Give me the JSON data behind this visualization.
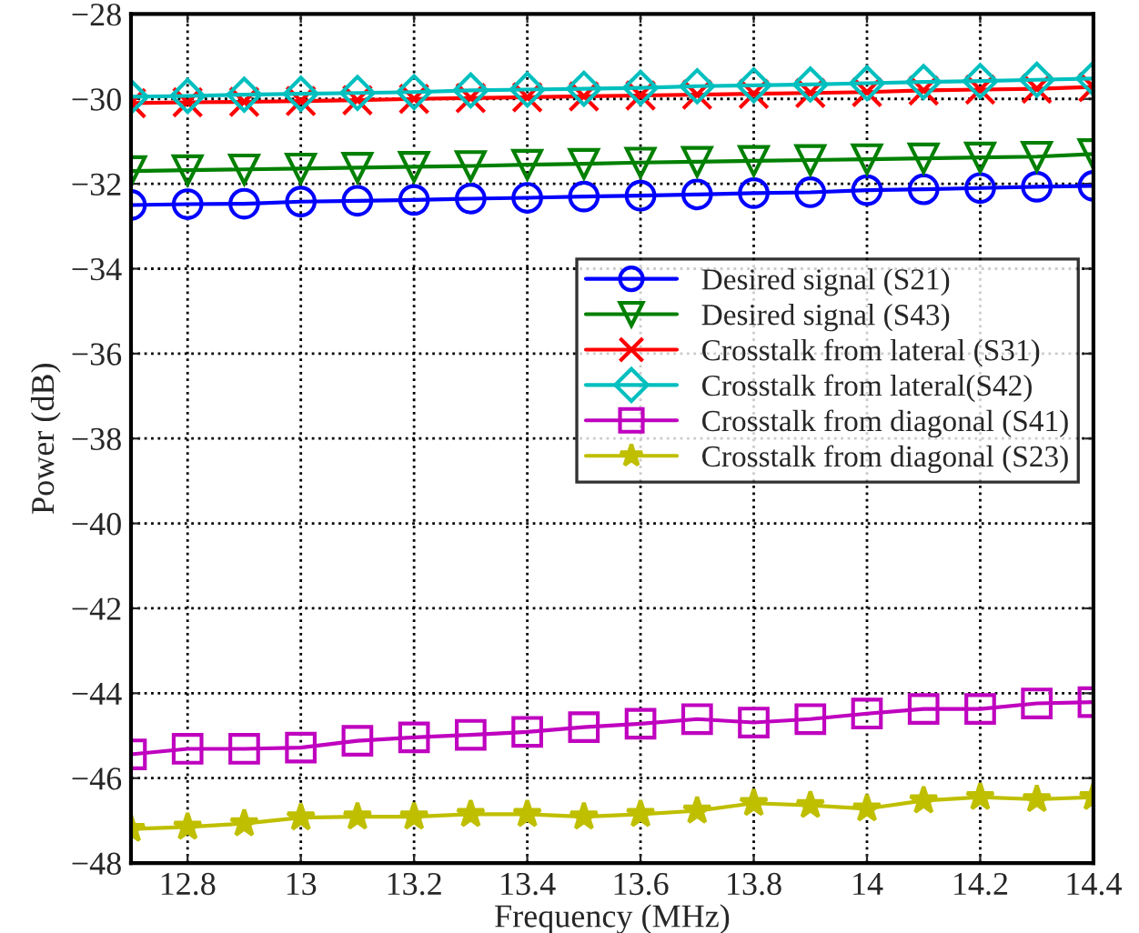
{
  "chart_data": {
    "type": "line",
    "xlabel": "Frequency (MHz)",
    "ylabel": "Power (dB)",
    "x": [
      12.7,
      12.8,
      12.9,
      13.0,
      13.1,
      13.2,
      13.3,
      13.4,
      13.5,
      13.6,
      13.7,
      13.8,
      13.9,
      14.0,
      14.1,
      14.2,
      14.3,
      14.4
    ],
    "series": [
      {
        "name": "Desired signal (S21)",
        "color": "#0000ff",
        "marker": "circle",
        "values": [
          -32.5,
          -32.48,
          -32.47,
          -32.42,
          -32.4,
          -32.38,
          -32.35,
          -32.33,
          -32.3,
          -32.28,
          -32.25,
          -32.22,
          -32.2,
          -32.15,
          -32.13,
          -32.1,
          -32.07,
          -32.05
        ]
      },
      {
        "name": "Desired signal (S43)",
        "color": "#008000",
        "marker": "triangle",
        "values": [
          -31.7,
          -31.68,
          -31.66,
          -31.64,
          -31.62,
          -31.6,
          -31.58,
          -31.55,
          -31.53,
          -31.5,
          -31.48,
          -31.46,
          -31.44,
          -31.42,
          -31.4,
          -31.38,
          -31.36,
          -31.3
        ]
      },
      {
        "name": "Crosstalk from lateral (S31)",
        "color": "#ff0000",
        "marker": "cross",
        "values": [
          -30.1,
          -30.08,
          -30.07,
          -30.05,
          -30.03,
          -30.0,
          -29.98,
          -29.96,
          -29.94,
          -29.92,
          -29.9,
          -29.88,
          -29.86,
          -29.84,
          -29.8,
          -29.78,
          -29.76,
          -29.72
        ]
      },
      {
        "name": "Crosstalk from lateral(S42)",
        "color": "#00bfbf",
        "marker": "diamond",
        "values": [
          -29.95,
          -29.93,
          -29.9,
          -29.88,
          -29.86,
          -29.84,
          -29.8,
          -29.78,
          -29.76,
          -29.74,
          -29.7,
          -29.68,
          -29.66,
          -29.63,
          -29.6,
          -29.58,
          -29.55,
          -29.52
        ]
      },
      {
        "name": "Crosstalk from diagonal (S41)",
        "color": "#bf00bf",
        "marker": "square",
        "values": [
          -45.44,
          -45.31,
          -45.31,
          -45.28,
          -45.12,
          -45.04,
          -44.98,
          -44.91,
          -44.8,
          -44.72,
          -44.61,
          -44.69,
          -44.61,
          -44.48,
          -44.37,
          -44.37,
          -44.24,
          -44.21
        ]
      },
      {
        "name": "Crosstalk from diagonal (S23)",
        "color": "#bfbf00",
        "marker": "star",
        "values": [
          -47.2,
          -47.15,
          -47.07,
          -46.93,
          -46.91,
          -46.91,
          -46.85,
          -46.85,
          -46.91,
          -46.85,
          -46.77,
          -46.59,
          -46.64,
          -46.72,
          -46.53,
          -46.45,
          -46.5,
          -46.45
        ]
      }
    ],
    "xlim": [
      12.7,
      14.4
    ],
    "xticks": [
      12.8,
      13,
      13.2,
      13.4,
      13.6,
      13.8,
      14,
      14.2,
      14.4
    ],
    "ylim": [
      -48,
      -28
    ],
    "yticks": [
      -48,
      -46,
      -44,
      -42,
      -40,
      -38,
      -36,
      -34,
      -32,
      -30,
      -28
    ],
    "grid": true,
    "legend": "right",
    "line_style": "solid"
  }
}
